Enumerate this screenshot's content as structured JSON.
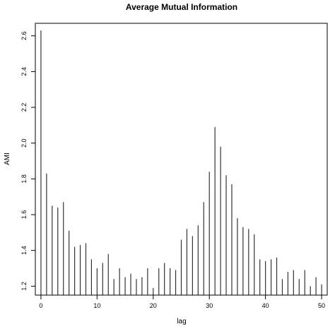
{
  "chart_data": {
    "type": "bar",
    "title": "Average Mutual Information",
    "xlabel": "lag",
    "ylabel": "AMI",
    "xlim": [
      -1,
      51
    ],
    "ylim": [
      1.15,
      2.67
    ],
    "x_ticks": [
      0,
      10,
      20,
      30,
      40,
      50
    ],
    "y_ticks": [
      1.2,
      1.4,
      1.6,
      1.8,
      2.0,
      2.2,
      2.4,
      2.6
    ],
    "x_tick_labels": [
      "0",
      "10",
      "20",
      "30",
      "40",
      "50"
    ],
    "y_tick_labels": [
      "1.2",
      "1.4",
      "1.6",
      "1.8",
      "2.0",
      "2.2",
      "2.4",
      "2.6"
    ],
    "grid": false,
    "x": [
      0,
      1,
      2,
      3,
      4,
      5,
      6,
      7,
      8,
      9,
      10,
      11,
      12,
      13,
      14,
      15,
      16,
      17,
      18,
      19,
      20,
      21,
      22,
      23,
      24,
      25,
      26,
      27,
      28,
      29,
      30,
      31,
      32,
      33,
      34,
      35,
      36,
      37,
      38,
      39,
      40,
      41,
      42,
      43,
      44,
      45,
      46,
      47,
      48,
      49,
      50
    ],
    "values": [
      2.63,
      1.83,
      1.65,
      1.64,
      1.67,
      1.51,
      1.42,
      1.43,
      1.44,
      1.35,
      1.3,
      1.33,
      1.38,
      1.24,
      1.3,
      1.25,
      1.27,
      1.24,
      1.25,
      1.3,
      1.19,
      1.3,
      1.33,
      1.3,
      1.29,
      1.46,
      1.52,
      1.48,
      1.54,
      1.67,
      1.84,
      2.09,
      1.98,
      1.82,
      1.77,
      1.58,
      1.53,
      1.52,
      1.49,
      1.35,
      1.34,
      1.35,
      1.36,
      1.24,
      1.28,
      1.29,
      1.24,
      1.29,
      1.2,
      1.25,
      1.21
    ]
  }
}
